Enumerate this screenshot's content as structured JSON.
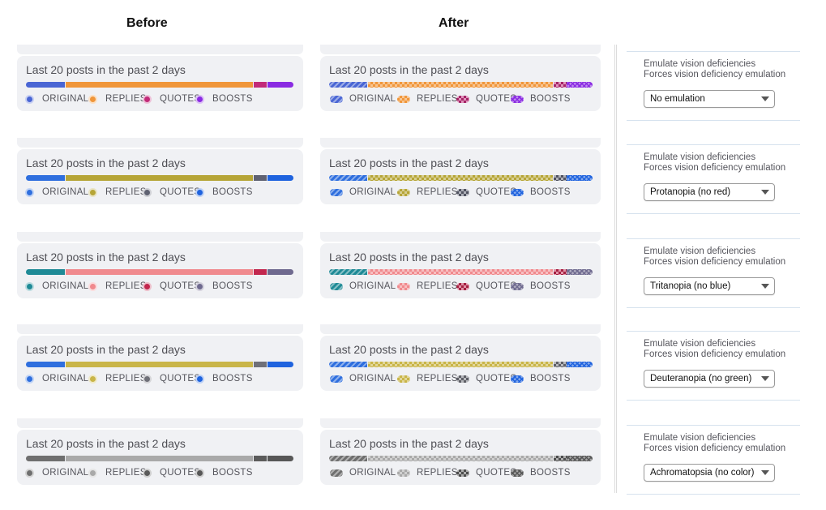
{
  "headers": {
    "before": "Before",
    "after": "After"
  },
  "card_title": "Last 20 posts in the past 2 days",
  "legend": [
    "ORIGINAL",
    "REPLIES",
    "QUOTES",
    "BOOSTS"
  ],
  "devtools": {
    "line1": "Emulate vision deficiencies",
    "line2": "Forces vision deficiency emulation"
  },
  "rows": [
    {
      "emulation": "No emulation",
      "colors": {
        "original": "#4a66d4",
        "replies": "#f0963a",
        "quotes": "#c22b79",
        "boosts": "#8a2be2"
      }
    },
    {
      "emulation": "Protanopia (no red)",
      "colors": {
        "original": "#2f6fde",
        "replies": "#b6a537",
        "quotes": "#5f6272",
        "boosts": "#1f63de"
      }
    },
    {
      "emulation": "Tritanopia (no blue)",
      "colors": {
        "original": "#1f8a96",
        "replies": "#f08a8e",
        "quotes": "#c2274e",
        "boosts": "#6f6a8f"
      }
    },
    {
      "emulation": "Deuteranopia (no green)",
      "colors": {
        "original": "#2f6fde",
        "replies": "#c9b548",
        "quotes": "#6f7078",
        "boosts": "#1f63de"
      }
    },
    {
      "emulation": "Achromatopsia (no color)",
      "colors": {
        "original": "#6f6f6f",
        "replies": "#a9a9a9",
        "quotes": "#5b5b5b",
        "boosts": "#575757"
      }
    }
  ]
}
